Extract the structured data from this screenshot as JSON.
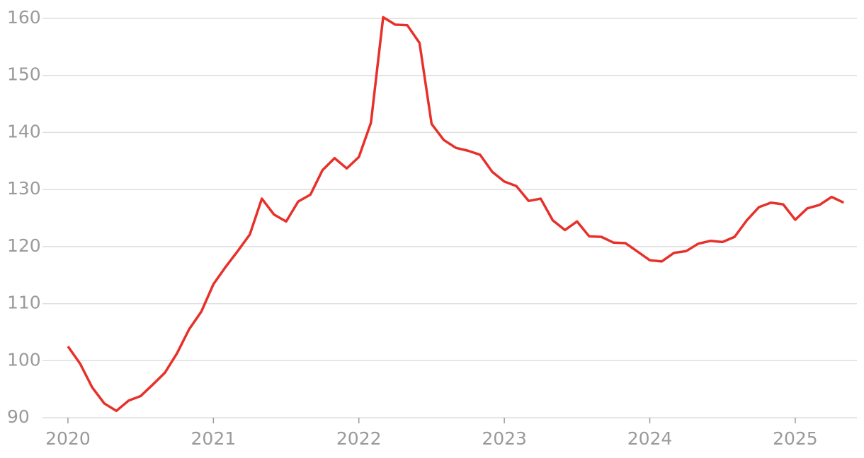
{
  "chart_data": {
    "type": "line",
    "x": [
      2020,
      2020.083,
      2020.167,
      2020.25,
      2020.333,
      2020.417,
      2020.5,
      2020.583,
      2020.667,
      2020.75,
      2020.833,
      2020.917,
      2021,
      2021.083,
      2021.167,
      2021.25,
      2021.333,
      2021.417,
      2021.5,
      2021.583,
      2021.667,
      2021.75,
      2021.833,
      2021.917,
      2022,
      2022.083,
      2022.167,
      2022.25,
      2022.333,
      2022.417,
      2022.5,
      2022.583,
      2022.667,
      2022.75,
      2022.833,
      2022.917,
      2023,
      2023.083,
      2023.167,
      2023.25,
      2023.333,
      2023.417,
      2023.5,
      2023.583,
      2023.667,
      2023.75,
      2023.833,
      2023.917,
      2024,
      2024.083,
      2024.167,
      2024.25,
      2024.333,
      2024.417,
      2024.5,
      2024.583,
      2024.667,
      2024.75,
      2024.833,
      2024.917,
      2025,
      2025.083,
      2025.167,
      2025.25,
      2025.333
    ],
    "series": [
      {
        "color": "#e8302a",
        "values": [
          102.5,
          99.5,
          95.3,
          92.5,
          91.2,
          93.0,
          93.8,
          95.8,
          97.9,
          101.3,
          105.5,
          108.6,
          113.4,
          116.4,
          119.2,
          122.1,
          128.4,
          125.6,
          124.4,
          127.9,
          129.1,
          133.4,
          135.5,
          133.7,
          135.7,
          141.7,
          160.2,
          158.9,
          158.8,
          155.7,
          141.5,
          138.7,
          137.3,
          136.8,
          136.1,
          133.1,
          131.4,
          130.6,
          128.0,
          128.4,
          124.6,
          122.9,
          124.4,
          121.8,
          121.7,
          120.7,
          120.6,
          119.1,
          117.6,
          117.4,
          118.9,
          119.2,
          120.5,
          121.0,
          120.8,
          121.7,
          124.6,
          126.9,
          127.7,
          127.4,
          124.7,
          126.7,
          127.3,
          128.7,
          127.7
        ]
      }
    ],
    "xlim": [
      2019.825,
      2025.424
    ],
    "xticks": [
      2020,
      2021,
      2022,
      2023,
      2024,
      2025
    ],
    "ylim": [
      90,
      160
    ],
    "yticks": [
      90,
      100,
      110,
      120,
      130,
      140,
      150,
      160
    ],
    "grid": true
  }
}
